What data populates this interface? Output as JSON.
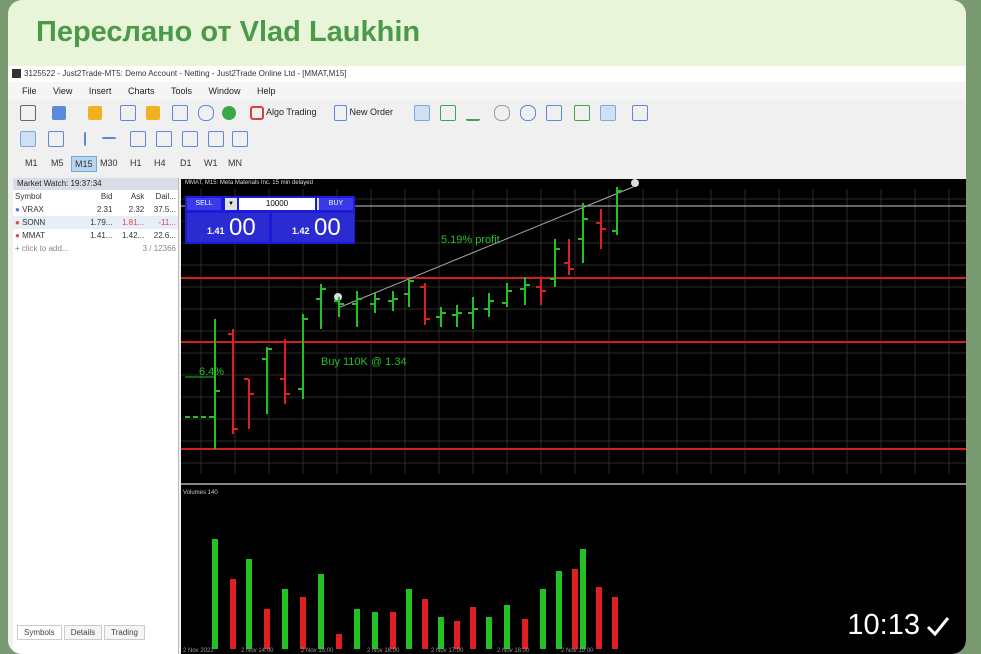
{
  "forward": {
    "label": "Переслано от Vlad Laukhin"
  },
  "window": {
    "title": "3125522 - Just2Trade-MT5: Demo Account - Netting - Just2Trade Online Ltd - [MMAT,M15]"
  },
  "menu": [
    "File",
    "View",
    "Insert",
    "Charts",
    "Tools",
    "Window",
    "Help"
  ],
  "toolbar": {
    "algo_trading": "Algo Trading",
    "new_order": "New Order"
  },
  "timeframes": [
    "M1",
    "M5",
    "M15",
    "M30",
    "H1",
    "H4",
    "D1",
    "W1",
    "MN"
  ],
  "timeframe_active": "M15",
  "market_watch": {
    "title": "Market Watch: 19:37:34",
    "columns": [
      "Symbol",
      "Bid",
      "Ask",
      "Dail..."
    ],
    "rows": [
      {
        "symbol": "VRAX",
        "bid": "2.31",
        "ask": "2.32",
        "daily": "37.5...",
        "dot_color": "#4a7ad8"
      },
      {
        "symbol": "SONN",
        "bid": "1.79...",
        "ask": "1.81...",
        "daily": "-11...",
        "dot_color": "#d84a4a"
      },
      {
        "symbol": "MMAT",
        "bid": "1.41...",
        "ask": "1.42...",
        "daily": "22.6...",
        "dot_color": "#d84a4a"
      }
    ],
    "add_label": "click to add...",
    "count": "3 / 12366",
    "tabs": [
      "Symbols",
      "Details",
      "Trading"
    ]
  },
  "chart": {
    "header": "MMAT, M15: Meta Materials Inc. 15 min delayed",
    "sell_label": "SELL",
    "buy_label": "BUY",
    "volume": "10000",
    "bid_small": "1.41",
    "bid_big": "00",
    "ask_small": "1.42",
    "ask_big": "00",
    "annotation_profit": "5.19% profit",
    "annotation_buy": "Buy 110K @ 1.34",
    "annotation_pct": "6.4%",
    "volumes_label": "Volumes 140",
    "time_labels": [
      "2 Nov 2022",
      "2 Nov 14:00",
      "2 Nov 15:00",
      "2 Nov 16:00",
      "2 Nov 17:00",
      "2 Nov 18:00",
      "2 Nov 19:00"
    ]
  },
  "message": {
    "time": "10:13"
  },
  "colors": {
    "up": "#22c022",
    "down": "#e02020",
    "level": "#d02020",
    "accent": "#4a9a4a"
  }
}
